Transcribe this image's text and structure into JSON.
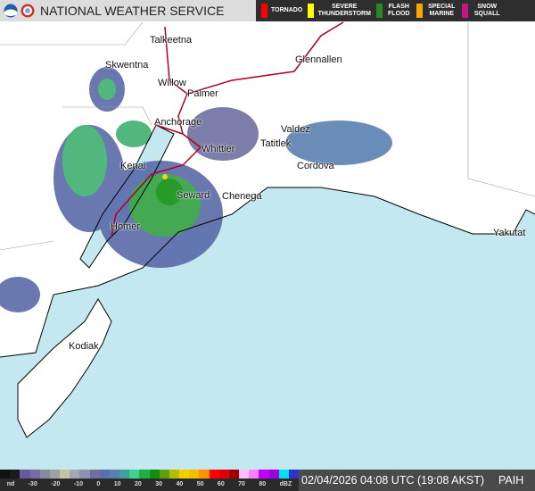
{
  "header": {
    "title": "NATIONAL WEATHER SERVICE",
    "logos": [
      "noaa-logo",
      "nws-logo"
    ]
  },
  "legend": [
    {
      "label": "TORNADO",
      "color": "#ff0000"
    },
    {
      "label": "SEVERE THUNDERSTORM",
      "color": "#ffff00"
    },
    {
      "label": "FLASH FLOOD",
      "color": "#228b22"
    },
    {
      "label": "SPECIAL MARINE",
      "color": "#ffa500"
    },
    {
      "label": "SNOW SQUALL",
      "color": "#c71585"
    }
  ],
  "cities": [
    {
      "name": "Talkeetna"
    },
    {
      "name": "Skwentna"
    },
    {
      "name": "Willow"
    },
    {
      "name": "Glennallen"
    },
    {
      "name": "Palmer"
    },
    {
      "name": "Anchorage"
    },
    {
      "name": "Valdez"
    },
    {
      "name": "Tatitlek"
    },
    {
      "name": "Whittier"
    },
    {
      "name": "Kenai"
    },
    {
      "name": "Cordova"
    },
    {
      "name": "Seward"
    },
    {
      "name": "Chenega"
    },
    {
      "name": "Homer"
    },
    {
      "name": "Yakutat"
    },
    {
      "name": "Kodiak"
    }
  ],
  "scale": {
    "ticks": [
      "nd",
      "-30",
      "-20",
      "-10",
      "0",
      "10",
      "20",
      "30",
      "40",
      "50",
      "60",
      "70",
      "80",
      "dBZ"
    ],
    "colors": [
      "#111",
      "#1a1a1a",
      "#6a5a9a",
      "#7a6aa5",
      "#8a8aa0",
      "#a0a0a0",
      "#c5c5a5",
      "#a5a5b5",
      "#8a94b0",
      "#7070a0",
      "#5a70a8",
      "#5a80b0",
      "#40a0a0",
      "#40d090",
      "#20b040",
      "#109010",
      "#60a010",
      "#b0c000",
      "#f0d000",
      "#f0c000",
      "#ff9000",
      "#ff0000",
      "#e00000",
      "#a00000",
      "#ffc0ff",
      "#ff80ff",
      "#c000ff",
      "#a000e0",
      "#00e0f0",
      "#3030d0"
    ]
  },
  "status": {
    "timestamp": "02/04/2026 04:08 UTC (19:08 AKST)",
    "station": "PAIH"
  }
}
